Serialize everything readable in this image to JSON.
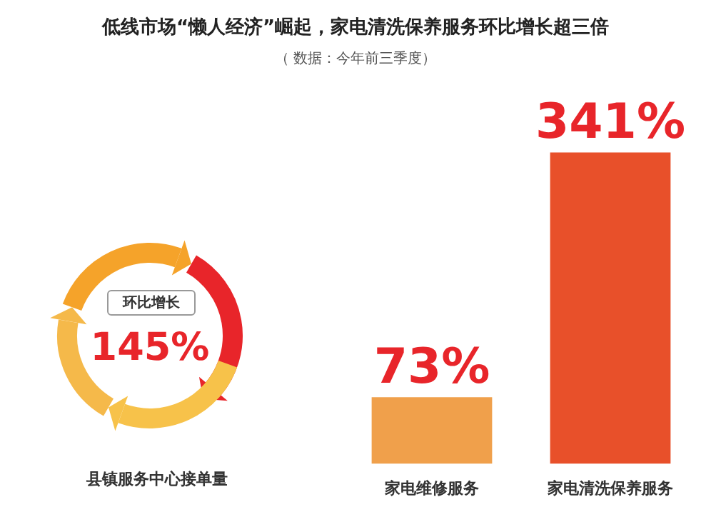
{
  "chart_data": [
    {
      "type": "other",
      "title": "低线市场“懒人经济”崛起，家电清洗保养服务环比增长超三倍",
      "subtitle": "（ 数据：今年前三季度）",
      "annotations": [
        "环比增长"
      ],
      "categories": [
        "县镇服务中心接单量"
      ],
      "values": [
        145
      ],
      "value_labels": [
        "145%"
      ]
    },
    {
      "type": "bar",
      "categories": [
        "家电维修服务",
        "家电清洗保养服务"
      ],
      "values": [
        73,
        341
      ],
      "colors": [
        "#f0a04b",
        "#e8502a"
      ],
      "value_labels": [
        "73%",
        "341%"
      ]
    }
  ]
}
